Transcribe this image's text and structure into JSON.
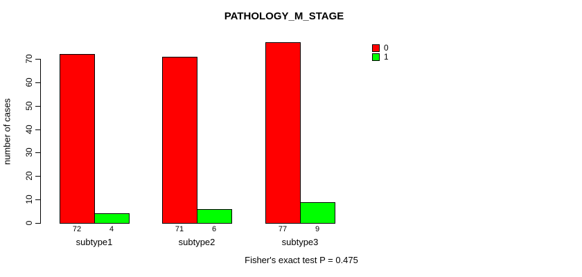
{
  "chart_data": {
    "type": "bar",
    "title": "PATHOLOGY_M_STAGE",
    "categories": [
      "subtype1",
      "subtype2",
      "subtype3"
    ],
    "series": [
      {
        "name": "0",
        "color": "#FF0000",
        "values": [
          72,
          71,
          77
        ]
      },
      {
        "name": "1",
        "color": "#00FF00",
        "values": [
          4,
          6,
          9
        ]
      }
    ],
    "xlabel": "",
    "ylabel": "number of cases",
    "yticks": [
      0,
      10,
      20,
      30,
      40,
      50,
      60,
      70
    ],
    "ylim": [
      0,
      77
    ],
    "grid": false,
    "legend_position": "right",
    "bar_value_labels": [
      [
        72,
        71,
        77
      ],
      [
        4,
        6,
        9
      ]
    ],
    "annotation": "Fisher's exact test P = 0.475"
  }
}
